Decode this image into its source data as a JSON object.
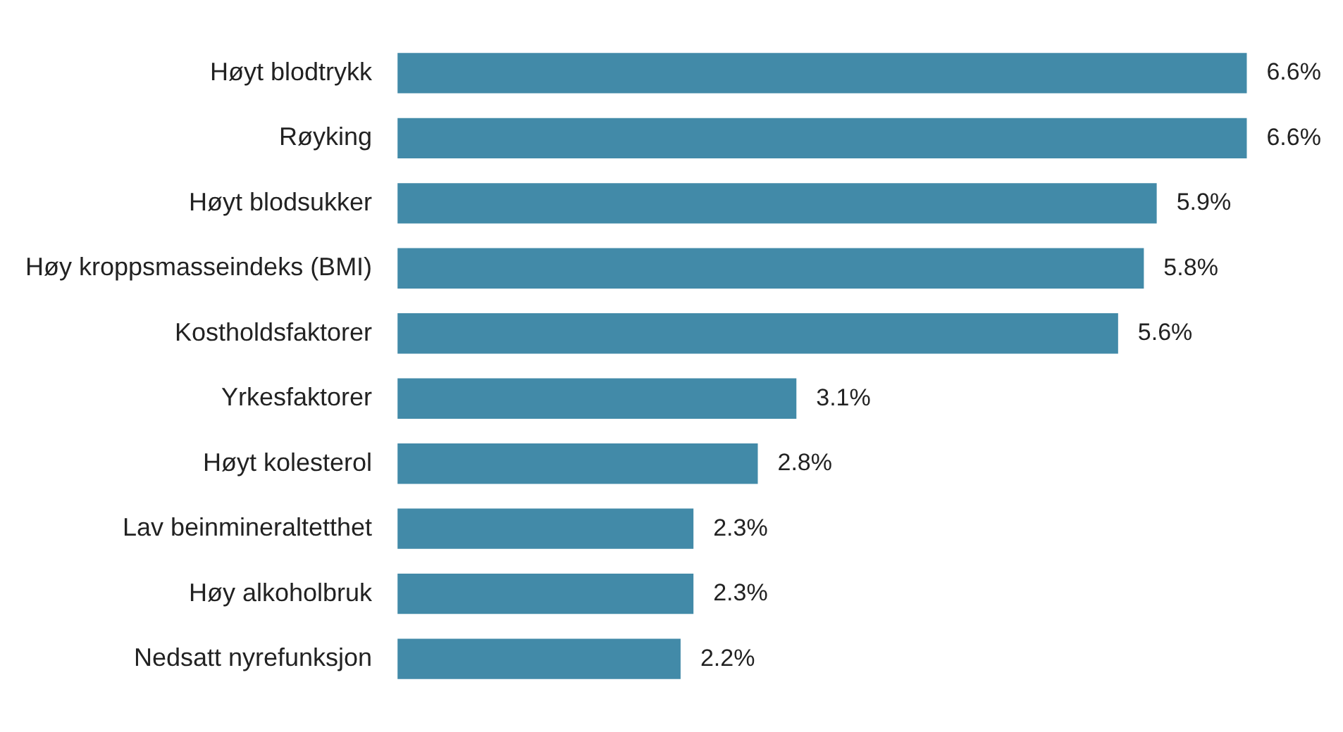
{
  "chart_data": {
    "type": "bar",
    "orientation": "horizontal",
    "categories": [
      "Høyt blodtrykk",
      "Røyking",
      "Høyt blodsukker",
      "Høy kroppsmasseindeks (BMI)",
      "Kostholdsfaktorer",
      "Yrkesfaktorer",
      "Høyt kolesterol",
      "Lav beinmineraltetthet",
      "Høy alkoholbruk",
      "Nedsatt nyrefunksjon"
    ],
    "values": [
      6.6,
      6.6,
      5.9,
      5.8,
      5.6,
      3.1,
      2.8,
      2.3,
      2.3,
      2.2
    ],
    "value_labels": [
      "6.6%",
      "6.6%",
      "5.9%",
      "5.8%",
      "5.6%",
      "3.1%",
      "2.8%",
      "2.3%",
      "2.3%",
      "2.2%"
    ],
    "color": "#428aa8"
  }
}
